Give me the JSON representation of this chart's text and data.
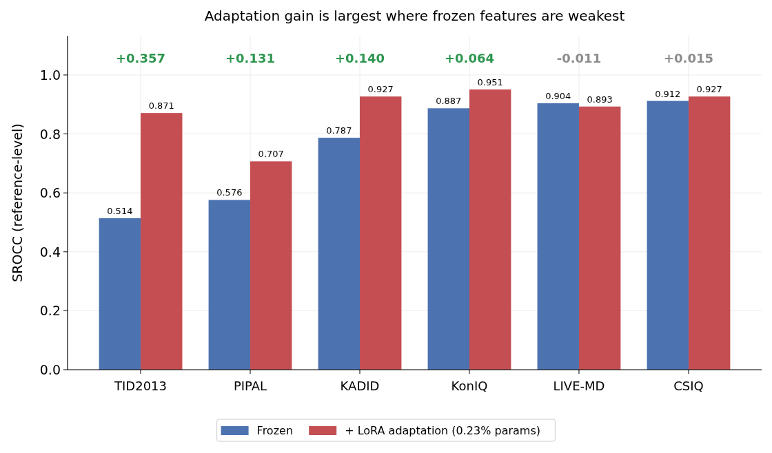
{
  "chart_data": {
    "type": "bar",
    "title": "Adaptation gain is largest where frozen features are weakest",
    "ylabel": "SROCC (reference-level)",
    "categories": [
      "TID2013",
      "PIPAL",
      "KADID",
      "KonIQ",
      "LIVE-MD",
      "CSIQ"
    ],
    "series": [
      {
        "name": "Frozen",
        "color": "#4c72b0",
        "values": [
          0.514,
          0.576,
          0.787,
          0.887,
          0.904,
          0.912
        ]
      },
      {
        "name": "+ LoRA adaptation (0.23% params)",
        "color": "#c44e52",
        "values": [
          0.871,
          0.707,
          0.927,
          0.951,
          0.893,
          0.927
        ]
      }
    ],
    "ylim": [
      0,
      1.133
    ],
    "yticks": [
      {
        "value": 0,
        "label": "0.0"
      },
      {
        "value": 0.2,
        "label": "0.2"
      },
      {
        "value": 0.4,
        "label": "0.4"
      },
      {
        "value": 0.6,
        "label": "0.6"
      },
      {
        "value": 0.8,
        "label": "0.8"
      },
      {
        "value": 1,
        "label": "1.0"
      }
    ],
    "grid": true,
    "legend": "bottom",
    "data_labels": true,
    "annotations": [
      "+0.357",
      "+0.131",
      "+0.140",
      "+0.064",
      "-0.011",
      "+0.015"
    ]
  }
}
